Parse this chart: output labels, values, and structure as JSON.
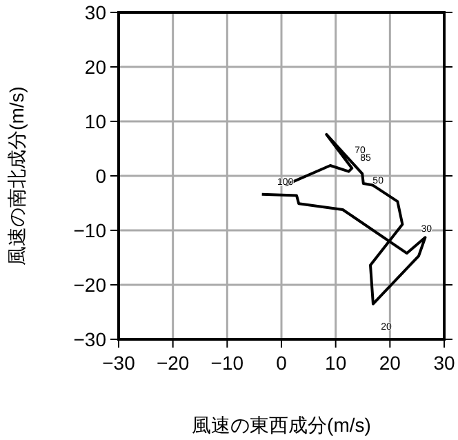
{
  "chart_data": {
    "type": "line",
    "xlabel": "風速の東西成分(m/s)",
    "ylabel": "風速の南北成分(m/s)",
    "xlim": [
      -30,
      30
    ],
    "ylim": [
      -30,
      30
    ],
    "xticks": [
      -30,
      -20,
      -10,
      0,
      10,
      20,
      30
    ],
    "yticks": [
      -30,
      -20,
      -10,
      0,
      10,
      20,
      30
    ],
    "grid": true,
    "series": [
      {
        "color": "#000000",
        "x": [
          -3.6,
          2.8,
          3.2,
          11.3,
          23.1,
          26.5,
          25.3,
          16.9,
          16.4,
          22.3,
          21.4,
          16.8,
          15.1,
          14.9,
          8.3,
          13.0,
          12.4,
          9.0,
          0.7
        ],
        "values": [
          -3.4,
          -3.6,
          -5.1,
          -6.2,
          -14.2,
          -11.3,
          -14.7,
          -23.5,
          -16.4,
          -8.9,
          -4.7,
          -1.7,
          -1.4,
          0.4,
          7.6,
          1.4,
          0.8,
          1.9,
          -1.7
        ]
      }
    ],
    "annotations": [
      "70",
      {
        "text": "85",
        "x": 14.5,
        "y": 2.3
      },
      {
        "text": "50",
        "x": 16.8,
        "y": -1.9
      },
      {
        "text": "100",
        "x": -0.3,
        "y": -2.1
      },
      {
        "text": "30",
        "x": 25.7,
        "y": -10.8
      },
      "20"
    ]
  }
}
